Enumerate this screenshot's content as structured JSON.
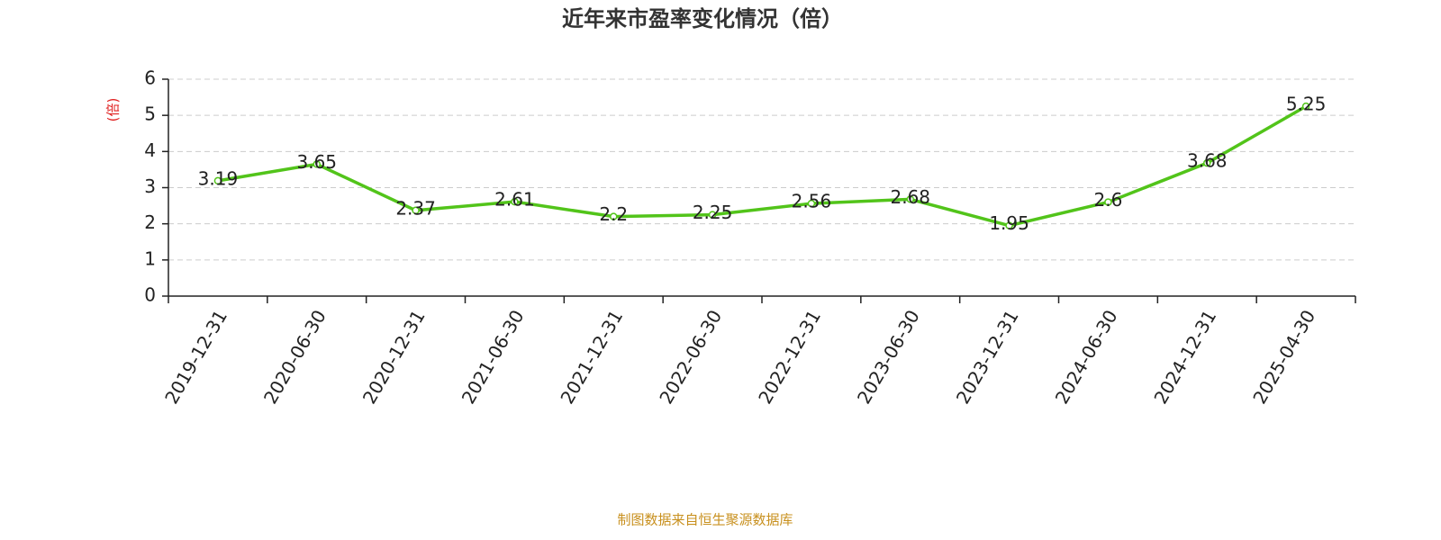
{
  "chart_data": {
    "type": "line",
    "title": "近年来市盈率变化情况（倍）",
    "y_label": "(倍)",
    "source": "制图数据来自恒生聚源数据库",
    "categories": [
      "2019-12-31",
      "2020-06-30",
      "2020-12-31",
      "2021-06-30",
      "2021-12-31",
      "2022-06-30",
      "2022-12-31",
      "2023-06-30",
      "2023-12-31",
      "2024-06-30",
      "2024-12-31",
      "2025-04-30"
    ],
    "values": [
      3.19,
      3.65,
      2.37,
      2.61,
      2.2,
      2.25,
      2.56,
      2.68,
      1.95,
      2.6,
      3.68,
      5.25
    ],
    "color": "#52c41a",
    "ylim": [
      0,
      6
    ],
    "yticks": [
      0,
      1,
      2,
      3,
      4,
      5,
      6
    ],
    "grid": true
  }
}
